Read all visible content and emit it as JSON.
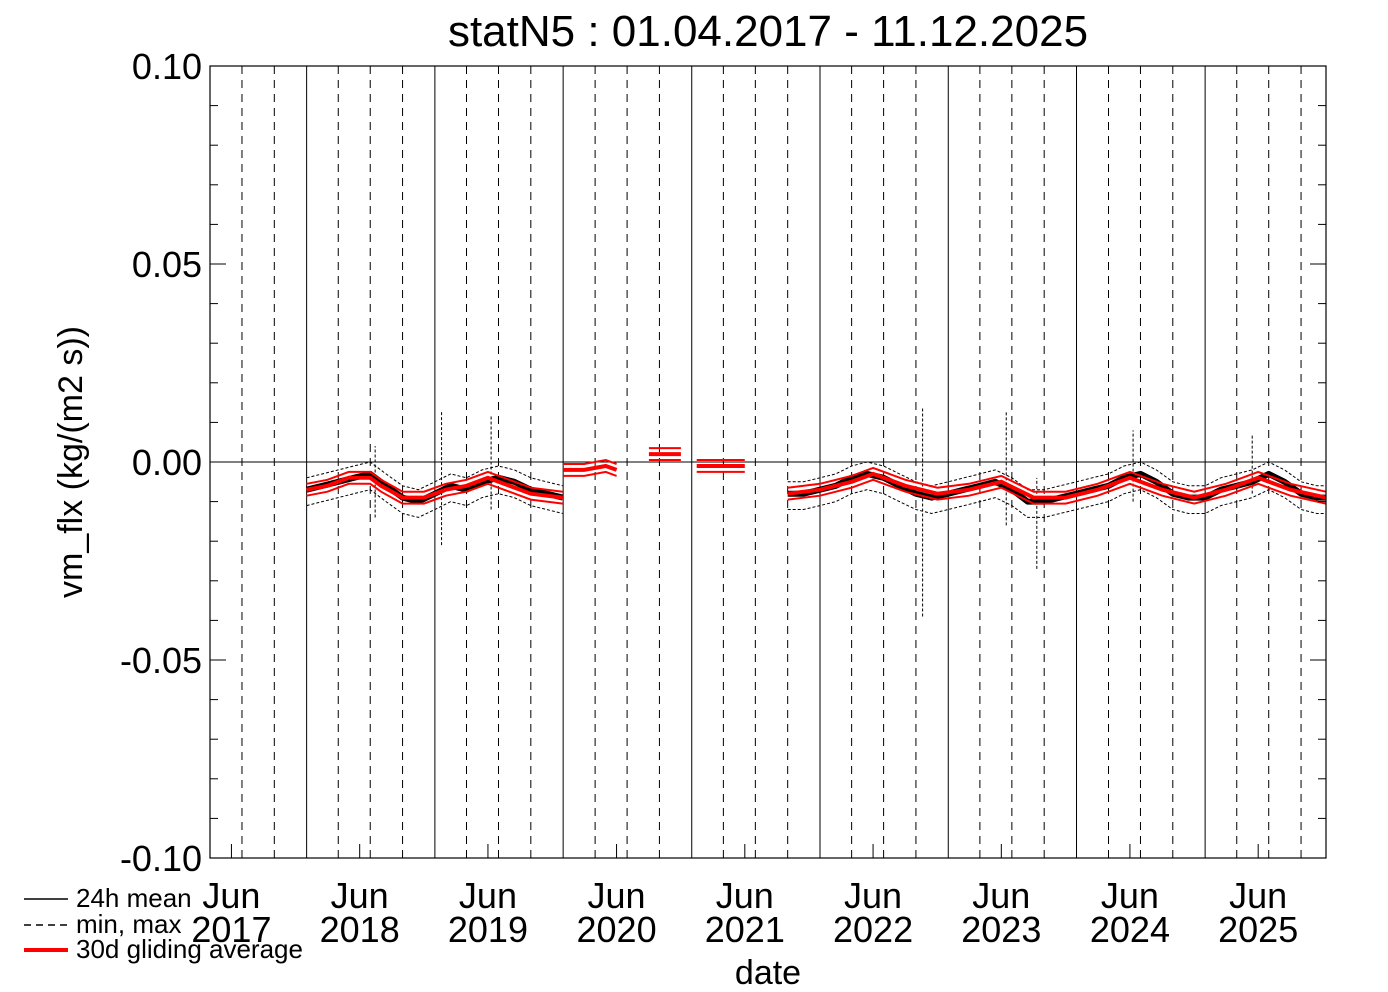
{
  "chart_data": {
    "type": "line",
    "title": "statN5 : 01.04.2017 - 11.12.2025",
    "xlabel": "date",
    "ylabel": "vm_flx (kg/(m2 s))",
    "xlim": [
      "2017-04-01",
      "2025-12-11"
    ],
    "ylim": [
      -0.1,
      0.1
    ],
    "yticks": [
      "0.10",
      "0.05",
      "0.00",
      "-0.05",
      "-0.10"
    ],
    "xticks": [
      {
        "month": "Jun",
        "year": "2017",
        "date": "2017-06-01"
      },
      {
        "month": "Jun",
        "year": "2018",
        "date": "2018-06-01"
      },
      {
        "month": "Jun",
        "year": "2019",
        "date": "2019-06-01"
      },
      {
        "month": "Jun",
        "year": "2020",
        "date": "2020-06-01"
      },
      {
        "month": "Jun",
        "year": "2021",
        "date": "2021-06-01"
      },
      {
        "month": "Jun",
        "year": "2022",
        "date": "2022-06-01"
      },
      {
        "month": "Jun",
        "year": "2023",
        "date": "2023-06-01"
      },
      {
        "month": "Jun",
        "year": "2024",
        "date": "2024-06-01"
      },
      {
        "month": "Jun",
        "year": "2025",
        "date": "2025-06-01"
      }
    ],
    "legend": {
      "placement": "bottom-left",
      "entries": [
        {
          "label": "24h mean",
          "style": "solid",
          "color": "#000000"
        },
        {
          "label": "min, max",
          "style": "dashed",
          "color": "#000000"
        },
        {
          "label": "30d gliding average",
          "style": "thick",
          "color": "#ff0000"
        }
      ]
    },
    "colors": {
      "mean": "#000000",
      "gliding": "#ff0000"
    },
    "series": [
      {
        "name": "24h mean",
        "segments": [
          {
            "x": [
              "2018-01-01",
              "2018-02-15",
              "2018-04-01",
              "2018-05-15",
              "2018-07-01",
              "2018-08-15",
              "2018-10-01",
              "2018-11-15",
              "2019-01-01",
              "2019-02-15",
              "2019-04-01",
              "2019-05-15",
              "2019-07-01",
              "2019-08-15",
              "2019-10-01",
              "2019-11-15",
              "2019-12-31"
            ],
            "y": [
              -0.007,
              -0.006,
              -0.005,
              -0.004,
              -0.003,
              -0.006,
              -0.009,
              -0.01,
              -0.008,
              -0.006,
              -0.007,
              -0.005,
              -0.004,
              -0.005,
              -0.007,
              -0.008,
              -0.009
            ]
          },
          {
            "x": [
              "2021-10-01",
              "2021-11-15",
              "2022-01-01",
              "2022-02-15",
              "2022-04-01",
              "2022-05-15",
              "2022-07-01",
              "2022-08-15",
              "2022-10-01",
              "2022-11-15",
              "2023-01-01",
              "2023-02-15",
              "2023-04-01",
              "2023-05-15",
              "2023-07-01",
              "2023-08-15",
              "2023-10-01",
              "2023-11-15",
              "2024-01-01",
              "2024-02-15",
              "2024-04-01",
              "2024-05-15",
              "2024-07-01",
              "2024-08-15",
              "2024-10-01",
              "2024-11-15",
              "2025-01-01",
              "2025-02-15",
              "2025-04-01",
              "2025-05-15",
              "2025-07-01",
              "2025-08-15",
              "2025-10-01",
              "2025-11-15",
              "2025-12-11"
            ],
            "y": [
              -0.008,
              -0.008,
              -0.007,
              -0.006,
              -0.004,
              -0.003,
              -0.004,
              -0.006,
              -0.008,
              -0.009,
              -0.008,
              -0.007,
              -0.006,
              -0.005,
              -0.007,
              -0.01,
              -0.01,
              -0.009,
              -0.008,
              -0.007,
              -0.006,
              -0.004,
              -0.003,
              -0.005,
              -0.008,
              -0.009,
              -0.009,
              -0.007,
              -0.006,
              -0.005,
              -0.003,
              -0.005,
              -0.008,
              -0.009,
              -0.009
            ]
          }
        ]
      },
      {
        "name": "min, max",
        "spikes": [
          {
            "x": "2018-07-15",
            "y": [
              -0.014,
              0.004
            ]
          },
          {
            "x": "2019-01-20",
            "y": [
              -0.021,
              0.013
            ]
          },
          {
            "x": "2019-06-10",
            "y": [
              -0.012,
              0.012
            ]
          },
          {
            "x": "2022-10-20",
            "y": [
              -0.039,
              0.014
            ]
          },
          {
            "x": "2023-06-15",
            "y": [
              -0.016,
              0.013
            ]
          },
          {
            "x": "2023-09-10",
            "y": [
              -0.027,
              -0.004
            ]
          },
          {
            "x": "2024-06-10",
            "y": [
              -0.01,
              0.008
            ]
          },
          {
            "x": "2025-05-15",
            "y": [
              -0.008,
              0.007
            ]
          }
        ]
      },
      {
        "name": "30d gliding average",
        "segments": [
          {
            "x": [
              "2018-01-01",
              "2018-03-01",
              "2018-05-01",
              "2018-07-01",
              "2018-08-01",
              "2018-10-01",
              "2018-12-01",
              "2019-02-01",
              "2019-04-01",
              "2019-06-01",
              "2019-08-01",
              "2019-10-01",
              "2019-12-31"
            ],
            "y": [
              -0.007,
              -0.006,
              -0.004,
              -0.004,
              -0.006,
              -0.009,
              -0.009,
              -0.007,
              -0.006,
              -0.004,
              -0.006,
              -0.008,
              -0.009
            ]
          },
          {
            "x": [
              "2020-01-01",
              "2020-03-01",
              "2020-05-01",
              "2020-06-01"
            ],
            "y": [
              -0.002,
              -0.002,
              -0.001,
              -0.002
            ]
          },
          {
            "x": [
              "2020-09-01",
              "2020-12-01"
            ],
            "y": [
              0.002,
              0.002
            ]
          },
          {
            "x": [
              "2021-01-15",
              "2021-06-01"
            ],
            "y": [
              -0.001,
              -0.001
            ]
          },
          {
            "x": [
              "2021-10-01",
              "2022-01-01",
              "2022-04-01",
              "2022-06-01",
              "2022-09-01",
              "2022-12-01",
              "2023-03-01",
              "2023-06-01",
              "2023-09-01",
              "2023-12-01",
              "2024-03-01",
              "2024-06-01",
              "2024-09-01",
              "2024-12-01",
              "2025-03-01",
              "2025-06-01",
              "2025-09-01",
              "2025-12-11"
            ],
            "y": [
              -0.008,
              -0.007,
              -0.005,
              -0.003,
              -0.006,
              -0.008,
              -0.007,
              -0.005,
              -0.009,
              -0.009,
              -0.007,
              -0.004,
              -0.007,
              -0.009,
              -0.007,
              -0.004,
              -0.007,
              -0.009
            ]
          }
        ]
      }
    ]
  }
}
